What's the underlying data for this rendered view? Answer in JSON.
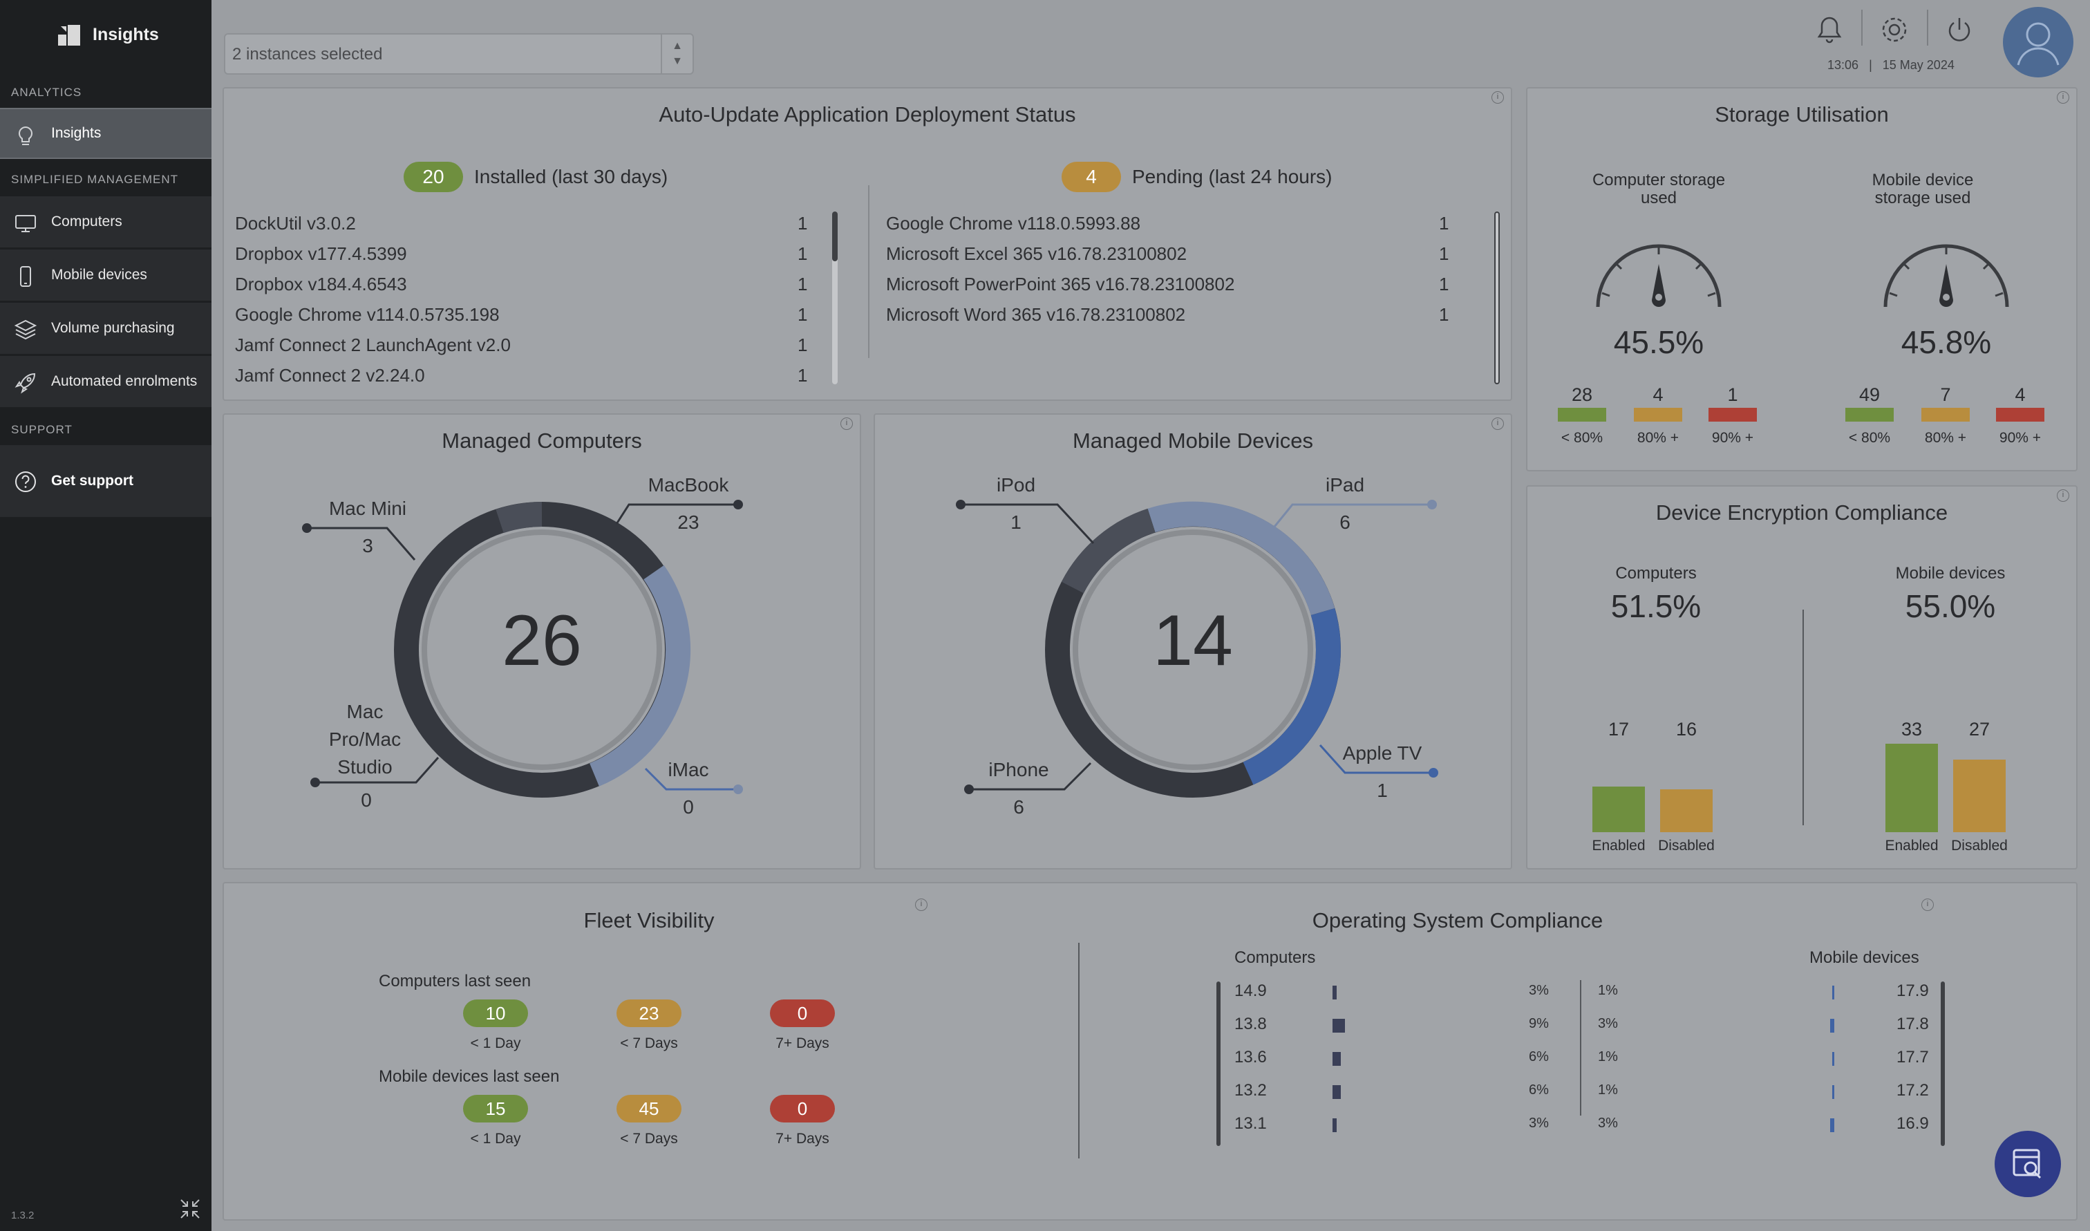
{
  "app": {
    "title": "Insights",
    "version": "1.3.2"
  },
  "sidebar": {
    "sections": [
      {
        "title": "ANALYTICS"
      },
      {
        "title": "SIMPLIFIED MANAGEMENT"
      },
      {
        "title": "SUPPORT"
      }
    ],
    "items": [
      {
        "label": "Insights",
        "icon": "lightbulb-icon"
      },
      {
        "label": "Computers",
        "icon": "monitor-icon"
      },
      {
        "label": "Mobile devices",
        "icon": "phone-icon"
      },
      {
        "label": "Volume purchasing",
        "icon": "layers-icon"
      },
      {
        "label": "Automated enrolments",
        "icon": "rocket-icon"
      },
      {
        "label": "Get support",
        "icon": "question-circle-icon"
      }
    ]
  },
  "toolbar": {
    "instances_value": "2 instances selected",
    "time": "13:06",
    "date_sep": "|",
    "date": "15 May 2024"
  },
  "deployment": {
    "title": "Auto-Update Application Deployment Status",
    "installed": {
      "count": "20",
      "label": "Installed (last 30 days)",
      "items": [
        {
          "name": "DockUtil v3.0.2",
          "count": "1"
        },
        {
          "name": "Dropbox v177.4.5399",
          "count": "1"
        },
        {
          "name": "Dropbox v184.4.6543",
          "count": "1"
        },
        {
          "name": "Google Chrome v114.0.5735.198",
          "count": "1"
        },
        {
          "name": "Jamf Connect 2 LaunchAgent v2.0",
          "count": "1"
        },
        {
          "name": "Jamf Connect 2 v2.24.0",
          "count": "1"
        }
      ]
    },
    "pending": {
      "count": "4",
      "label": "Pending (last 24 hours)",
      "items": [
        {
          "name": "Google Chrome v118.0.5993.88",
          "count": "1"
        },
        {
          "name": "Microsoft Excel 365 v16.78.23100802",
          "count": "1"
        },
        {
          "name": "Microsoft PowerPoint 365 v16.78.23100802",
          "count": "1"
        },
        {
          "name": "Microsoft Word 365 v16.78.23100802",
          "count": "1"
        }
      ]
    }
  },
  "storage": {
    "title": "Storage Utilisation",
    "computer": {
      "label1": "Computer storage",
      "label2": "used",
      "percent": "45.5%",
      "value": 45.5,
      "buckets": [
        {
          "value": "28",
          "label": "< 80%"
        },
        {
          "value": "4",
          "label": "80% +"
        },
        {
          "value": "1",
          "label": "90% +"
        }
      ]
    },
    "mobile": {
      "label1": "Mobile device",
      "label2": "storage used",
      "percent": "45.8%",
      "value": 45.8,
      "buckets": [
        {
          "value": "49",
          "label": "< 80%"
        },
        {
          "value": "7",
          "label": "80% +"
        },
        {
          "value": "4",
          "label": "90% +"
        }
      ]
    }
  },
  "managed_computers": {
    "title": "Managed Computers",
    "total": "26",
    "segments": [
      {
        "label": "Mac Mini",
        "value": "3"
      },
      {
        "label": "MacBook",
        "value": "23"
      },
      {
        "label1": "Mac",
        "label2": "Pro/Mac",
        "label3": "Studio",
        "value": "0"
      },
      {
        "label": "iMac",
        "value": "0"
      }
    ]
  },
  "managed_mobile": {
    "title": "Managed Mobile Devices",
    "total": "14",
    "segments": [
      {
        "label": "iPod",
        "value": "1"
      },
      {
        "label": "iPad",
        "value": "6"
      },
      {
        "label": "iPhone",
        "value": "6"
      },
      {
        "label": "Apple TV",
        "value": "1"
      }
    ]
  },
  "encryption": {
    "title": "Device Encryption Compliance",
    "computers": {
      "label": "Computers",
      "percent": "51.5%",
      "enabled": "17",
      "disabled": "16",
      "enabled_value": 17,
      "disabled_value": 16
    },
    "mobile": {
      "label": "Mobile devices",
      "percent": "55.0%",
      "enabled": "33",
      "disabled": "27",
      "enabled_value": 33,
      "disabled_value": 27
    },
    "enabled_label": "Enabled",
    "disabled_label": "Disabled"
  },
  "fleet": {
    "title": "Fleet Visibility",
    "computers": {
      "label": "Computers last seen",
      "values": [
        "10",
        "23",
        "0"
      ]
    },
    "mobile": {
      "label": "Mobile devices last seen",
      "values": [
        "15",
        "45",
        "0"
      ]
    },
    "ranges": [
      "< 1 Day",
      "< 7 Days",
      "7+ Days"
    ]
  },
  "os_compliance": {
    "title": "Operating System Compliance",
    "computers_label": "Computers",
    "mobile_label": "Mobile devices",
    "computers": [
      {
        "version": "14.9",
        "pct": "3%",
        "v": 3
      },
      {
        "version": "13.8",
        "pct": "9%",
        "v": 9
      },
      {
        "version": "13.6",
        "pct": "6%",
        "v": 6
      },
      {
        "version": "13.2",
        "pct": "6%",
        "v": 6
      },
      {
        "version": "13.1",
        "pct": "3%",
        "v": 3
      }
    ],
    "mobile": [
      {
        "version": "17.9",
        "pct": "1%",
        "v": 1
      },
      {
        "version": "17.8",
        "pct": "3%",
        "v": 3
      },
      {
        "version": "17.7",
        "pct": "1%",
        "v": 1
      },
      {
        "version": "17.2",
        "pct": "1%",
        "v": 1
      },
      {
        "version": "16.9",
        "pct": "3%",
        "v": 3
      }
    ]
  },
  "colors": {
    "green": "#6f8f3f",
    "amber": "#b88d3e",
    "red": "#ae4036",
    "dark_ring": "#35383f",
    "blue_ring": "#4063a3",
    "light_ring": "#7a8aa8"
  }
}
